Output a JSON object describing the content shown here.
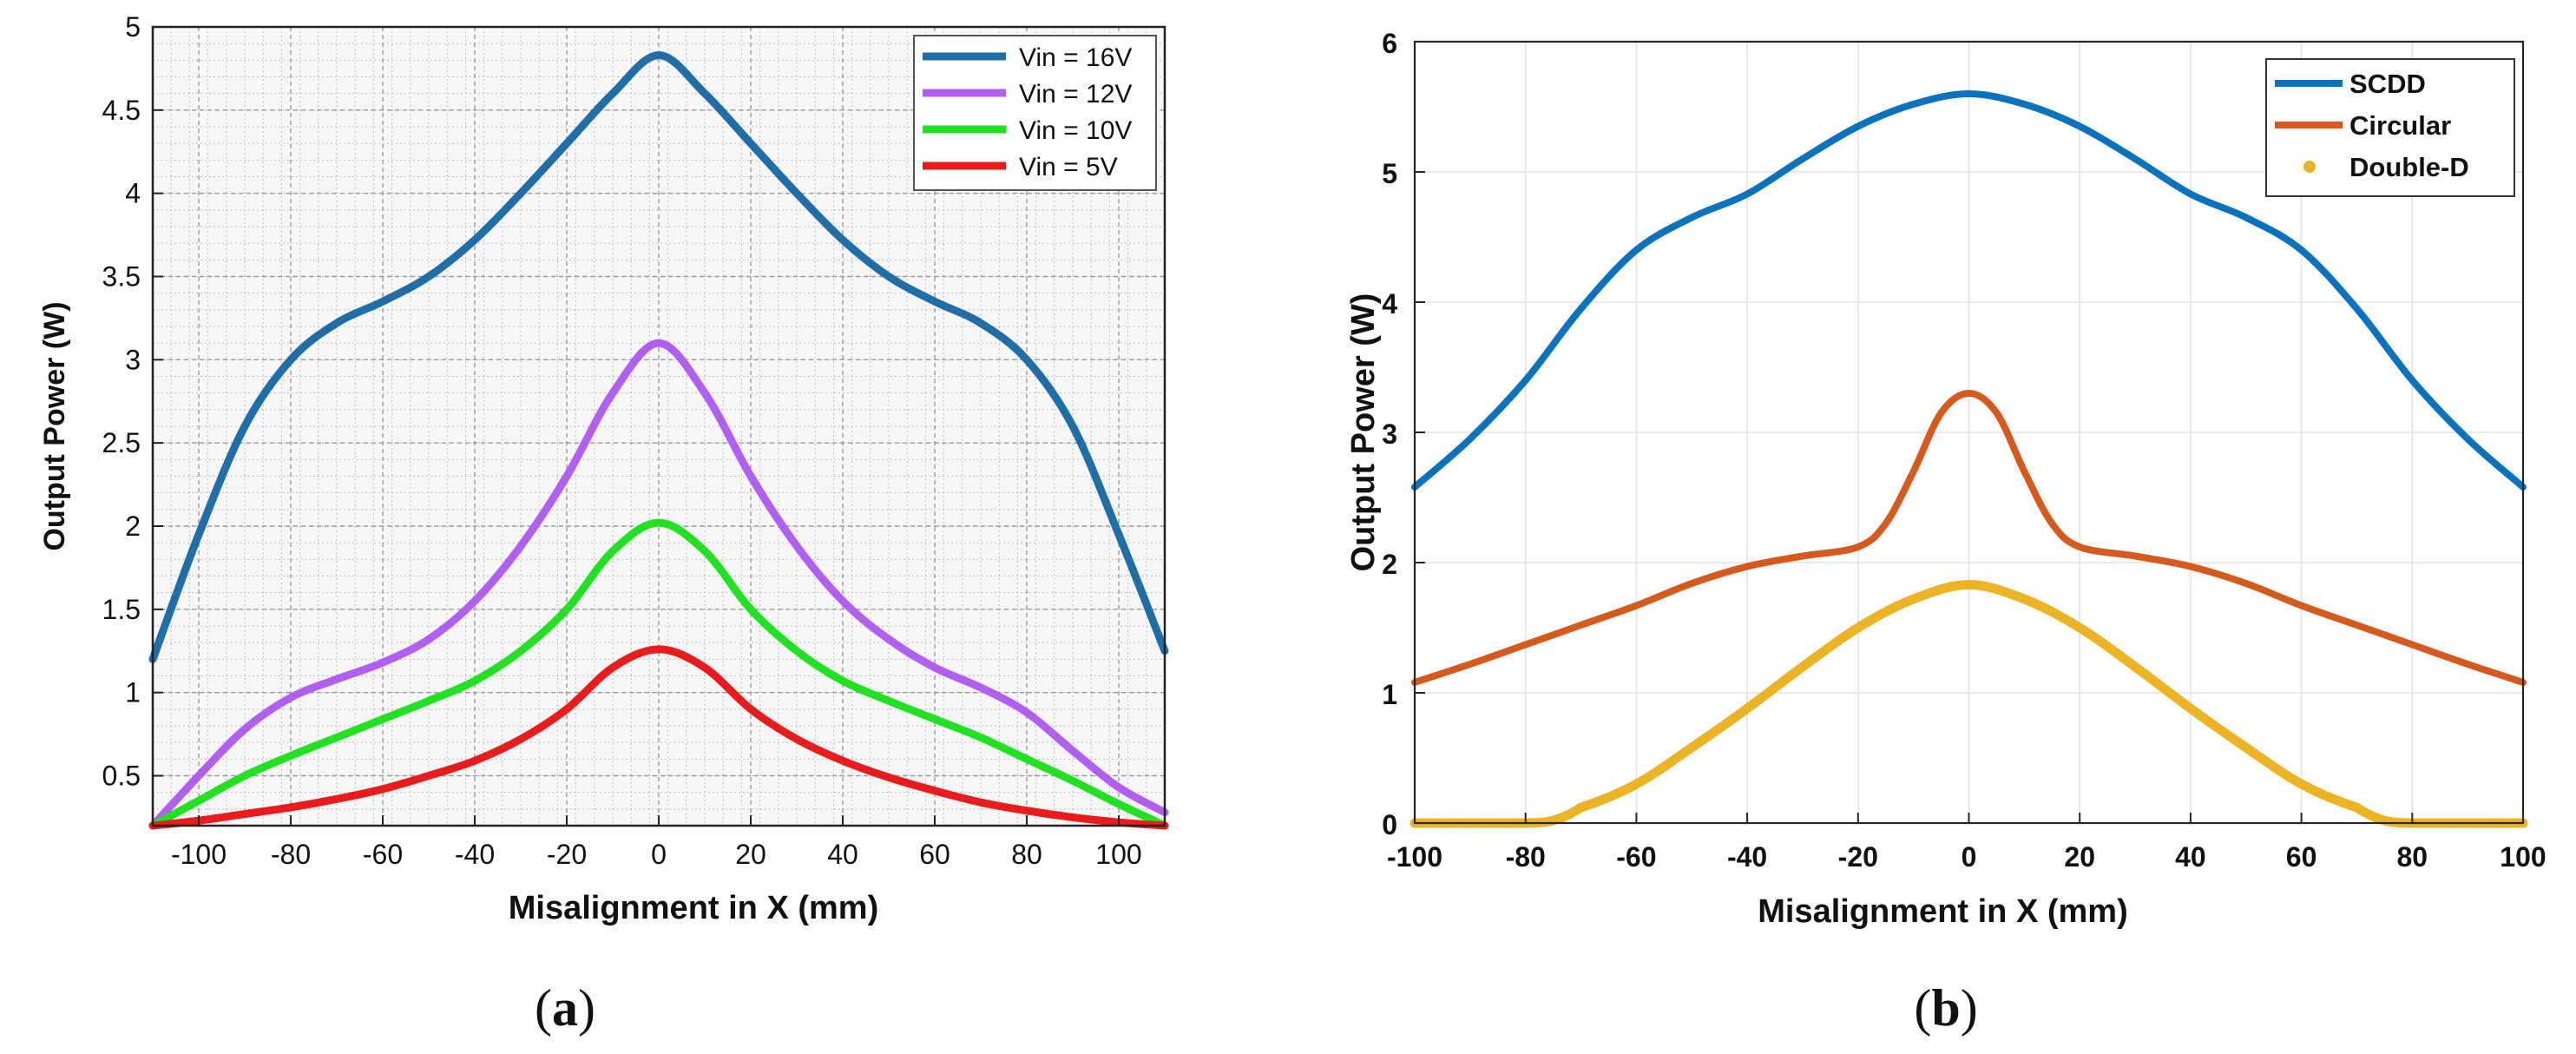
{
  "chart_data": [
    {
      "id": "a",
      "type": "line",
      "caption_open": "(",
      "caption_letter": "a",
      "caption_close": ")",
      "xlabel": "Misalignment in X (mm)",
      "ylabel": "Output Power (W)",
      "xlim": [
        -110,
        110
      ],
      "ylim": [
        0.2,
        5
      ],
      "xticks": [
        -100,
        -80,
        -60,
        -40,
        -20,
        0,
        20,
        40,
        60,
        80,
        100
      ],
      "yticks": [
        0.5,
        1,
        1.5,
        2,
        2.5,
        3,
        3.5,
        4,
        4.5,
        5
      ],
      "grid": true,
      "minor_grid": true,
      "legend_position": "top-right",
      "series": [
        {
          "name": "Vin = 16V",
          "color": "#1f6ea8",
          "x": [
            -110,
            -100,
            -90,
            -80,
            -70,
            -60,
            -50,
            -40,
            -30,
            -20,
            -10,
            0,
            10,
            20,
            30,
            40,
            50,
            60,
            70,
            80,
            90,
            100,
            110
          ],
          "y": [
            1.2,
            1.95,
            2.6,
            3.0,
            3.22,
            3.35,
            3.5,
            3.72,
            4.0,
            4.3,
            4.6,
            4.83,
            4.6,
            4.3,
            4.0,
            3.72,
            3.5,
            3.35,
            3.22,
            3.0,
            2.6,
            1.95,
            1.25
          ]
        },
        {
          "name": "Vin = 12V",
          "color": "#b05ff0",
          "x": [
            -110,
            -100,
            -90,
            -80,
            -70,
            -60,
            -50,
            -40,
            -30,
            -20,
            -10,
            0,
            10,
            20,
            30,
            40,
            50,
            60,
            70,
            80,
            90,
            100,
            110
          ],
          "y": [
            0.2,
            0.5,
            0.78,
            0.97,
            1.08,
            1.18,
            1.32,
            1.55,
            1.88,
            2.3,
            2.8,
            3.1,
            2.8,
            2.3,
            1.88,
            1.55,
            1.32,
            1.15,
            1.03,
            0.88,
            0.65,
            0.43,
            0.28
          ]
        },
        {
          "name": "Vin = 10V",
          "color": "#22e022",
          "x": [
            -110,
            -100,
            -90,
            -80,
            -70,
            -60,
            -50,
            -40,
            -30,
            -20,
            -10,
            0,
            10,
            20,
            30,
            40,
            50,
            60,
            70,
            80,
            90,
            100,
            110
          ],
          "y": [
            0.2,
            0.35,
            0.5,
            0.62,
            0.73,
            0.84,
            0.95,
            1.07,
            1.25,
            1.5,
            1.85,
            2.02,
            1.85,
            1.5,
            1.25,
            1.07,
            0.95,
            0.84,
            0.73,
            0.6,
            0.47,
            0.33,
            0.2
          ]
        },
        {
          "name": "Vin = 5V",
          "color": "#e81c1c",
          "x": [
            -110,
            -100,
            -90,
            -80,
            -70,
            -60,
            -50,
            -40,
            -30,
            -20,
            -10,
            0,
            10,
            20,
            30,
            40,
            50,
            60,
            70,
            80,
            90,
            100,
            110
          ],
          "y": [
            0.2,
            0.23,
            0.27,
            0.31,
            0.36,
            0.42,
            0.5,
            0.59,
            0.72,
            0.9,
            1.15,
            1.26,
            1.15,
            0.9,
            0.72,
            0.59,
            0.49,
            0.41,
            0.34,
            0.29,
            0.25,
            0.22,
            0.2
          ]
        }
      ]
    },
    {
      "id": "b",
      "type": "line",
      "caption_open": "(",
      "caption_letter": "b",
      "caption_close": ")",
      "xlabel": "Misalignment in X (mm)",
      "ylabel": "Output Power (W)",
      "xlim": [
        -100,
        100
      ],
      "ylim": [
        0,
        6
      ],
      "xticks": [
        -100,
        -80,
        -60,
        -40,
        -20,
        0,
        20,
        40,
        60,
        80,
        100
      ],
      "yticks": [
        0,
        1,
        2,
        3,
        4,
        5,
        6
      ],
      "grid": true,
      "minor_grid": false,
      "legend_position": "top-right",
      "series": [
        {
          "name": "SCDD",
          "color": "#0b72bd",
          "style": "line",
          "x": [
            -100,
            -90,
            -80,
            -70,
            -60,
            -50,
            -40,
            -30,
            -20,
            -10,
            0,
            10,
            20,
            30,
            40,
            50,
            60,
            70,
            80,
            90,
            100
          ],
          "y": [
            2.58,
            2.95,
            3.4,
            3.95,
            4.4,
            4.65,
            4.83,
            5.1,
            5.35,
            5.52,
            5.6,
            5.52,
            5.35,
            5.1,
            4.83,
            4.65,
            4.4,
            3.95,
            3.4,
            2.95,
            2.58
          ]
        },
        {
          "name": "Circular",
          "color": "#d65a1e",
          "style": "line",
          "x": [
            -100,
            -90,
            -80,
            -70,
            -60,
            -50,
            -40,
            -30,
            -20,
            -15,
            -10,
            -5,
            0,
            5,
            10,
            15,
            20,
            30,
            40,
            50,
            60,
            70,
            80,
            90,
            100
          ],
          "y": [
            1.08,
            1.22,
            1.37,
            1.52,
            1.67,
            1.84,
            1.97,
            2.05,
            2.12,
            2.3,
            2.7,
            3.15,
            3.3,
            3.15,
            2.7,
            2.3,
            2.12,
            2.05,
            1.97,
            1.84,
            1.67,
            1.52,
            1.37,
            1.22,
            1.08
          ]
        },
        {
          "name": "Double-D",
          "color": "#ecb324",
          "style": "dots",
          "x": [
            -100,
            -90,
            -80,
            -75,
            -70,
            -60,
            -50,
            -40,
            -30,
            -20,
            -10,
            0,
            10,
            20,
            30,
            40,
            50,
            60,
            70,
            75,
            80,
            90,
            100
          ],
          "y": [
            0,
            0,
            0,
            0.02,
            0.12,
            0.3,
            0.58,
            0.88,
            1.2,
            1.5,
            1.72,
            1.83,
            1.72,
            1.5,
            1.2,
            0.88,
            0.58,
            0.3,
            0.12,
            0.02,
            0,
            0,
            0
          ]
        }
      ]
    }
  ]
}
